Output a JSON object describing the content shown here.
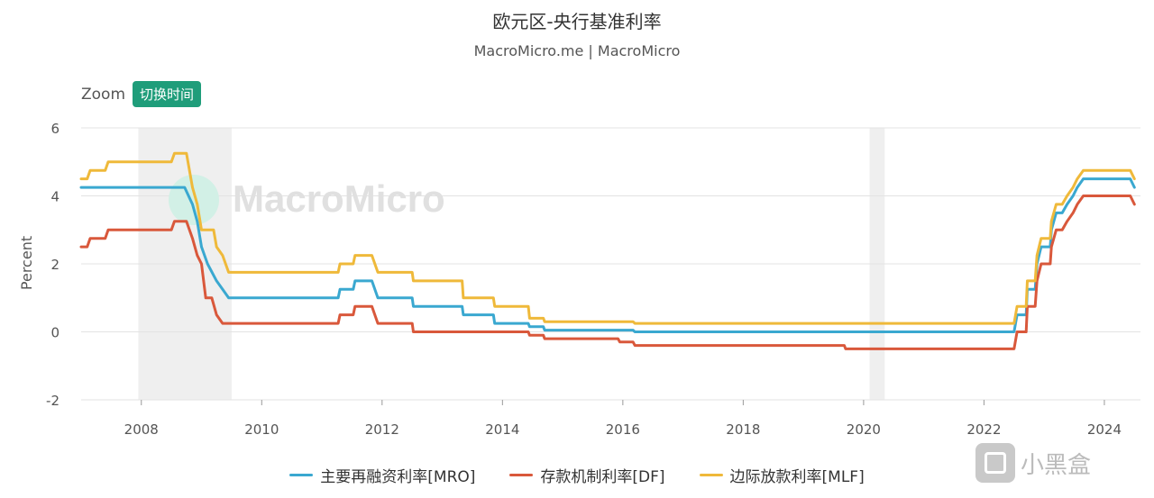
{
  "header": {
    "title": "欧元区-央行基准利率",
    "subtitle": "MacroMicro.me | MacroMicro"
  },
  "zoom": {
    "label": "Zoom",
    "button": "切换时间"
  },
  "watermark": {
    "text": "MacroMicro",
    "corner_text": "小黑盒"
  },
  "colors": {
    "mro": "#3aa8d0",
    "df": "#d9583b",
    "mlf": "#efb93a",
    "recession_band": "#efefef",
    "grid": "#e3e3e3"
  },
  "chart_data": {
    "type": "line",
    "title": "欧元区-央行基准利率",
    "ylabel": "Percent",
    "xlabel": "",
    "xlim": [
      2007.0,
      2024.6
    ],
    "ylim": [
      -2,
      6
    ],
    "xticks": [
      2008,
      2010,
      2012,
      2014,
      2016,
      2018,
      2020,
      2022,
      2024
    ],
    "yticks": [
      -2,
      0,
      2,
      4,
      6
    ],
    "grid": true,
    "legend_position": "bottom",
    "recession_bands": [
      [
        2007.95,
        2009.5
      ],
      [
        2020.1,
        2020.35
      ]
    ],
    "series": [
      {
        "name": "主要再融资利率[MRO]",
        "color_key": "mro",
        "points": [
          [
            2007.0,
            4.25
          ],
          [
            2008.72,
            4.25
          ],
          [
            2008.85,
            3.75
          ],
          [
            2008.93,
            3.25
          ],
          [
            2009.0,
            2.5
          ],
          [
            2009.1,
            2.0
          ],
          [
            2009.25,
            1.5
          ],
          [
            2009.35,
            1.25
          ],
          [
            2009.45,
            1.0
          ],
          [
            2011.27,
            1.0
          ],
          [
            2011.3,
            1.25
          ],
          [
            2011.52,
            1.25
          ],
          [
            2011.55,
            1.5
          ],
          [
            2011.83,
            1.5
          ],
          [
            2011.93,
            1.0
          ],
          [
            2012.5,
            1.0
          ],
          [
            2012.52,
            0.75
          ],
          [
            2013.33,
            0.75
          ],
          [
            2013.35,
            0.5
          ],
          [
            2013.85,
            0.5
          ],
          [
            2013.87,
            0.25
          ],
          [
            2014.43,
            0.25
          ],
          [
            2014.45,
            0.15
          ],
          [
            2014.68,
            0.15
          ],
          [
            2014.7,
            0.05
          ],
          [
            2016.17,
            0.05
          ],
          [
            2016.2,
            0.0
          ],
          [
            2022.5,
            0.0
          ],
          [
            2022.55,
            0.5
          ],
          [
            2022.7,
            0.5
          ],
          [
            2022.72,
            1.25
          ],
          [
            2022.85,
            1.25
          ],
          [
            2022.88,
            2.0
          ],
          [
            2022.95,
            2.5
          ],
          [
            2023.1,
            2.5
          ],
          [
            2023.12,
            3.0
          ],
          [
            2023.2,
            3.5
          ],
          [
            2023.3,
            3.5
          ],
          [
            2023.38,
            3.75
          ],
          [
            2023.48,
            4.0
          ],
          [
            2023.55,
            4.25
          ],
          [
            2023.65,
            4.5
          ],
          [
            2024.43,
            4.5
          ],
          [
            2024.5,
            4.25
          ]
        ]
      },
      {
        "name": "存款机制利率[DF]",
        "color_key": "df",
        "points": [
          [
            2007.0,
            2.5
          ],
          [
            2007.1,
            2.5
          ],
          [
            2007.15,
            2.75
          ],
          [
            2007.4,
            2.75
          ],
          [
            2007.45,
            3.0
          ],
          [
            2008.5,
            3.0
          ],
          [
            2008.55,
            3.25
          ],
          [
            2008.75,
            3.25
          ],
          [
            2008.85,
            2.75
          ],
          [
            2008.93,
            2.25
          ],
          [
            2009.0,
            2.0
          ],
          [
            2009.07,
            1.0
          ],
          [
            2009.17,
            1.0
          ],
          [
            2009.25,
            0.5
          ],
          [
            2009.35,
            0.25
          ],
          [
            2011.27,
            0.25
          ],
          [
            2011.3,
            0.5
          ],
          [
            2011.52,
            0.5
          ],
          [
            2011.55,
            0.75
          ],
          [
            2011.83,
            0.75
          ],
          [
            2011.93,
            0.25
          ],
          [
            2012.5,
            0.25
          ],
          [
            2012.52,
            0.0
          ],
          [
            2014.43,
            0.0
          ],
          [
            2014.45,
            -0.1
          ],
          [
            2014.68,
            -0.1
          ],
          [
            2014.7,
            -0.2
          ],
          [
            2015.92,
            -0.2
          ],
          [
            2015.95,
            -0.3
          ],
          [
            2016.17,
            -0.3
          ],
          [
            2016.2,
            -0.4
          ],
          [
            2019.68,
            -0.4
          ],
          [
            2019.7,
            -0.5
          ],
          [
            2022.5,
            -0.5
          ],
          [
            2022.55,
            0.0
          ],
          [
            2022.7,
            0.0
          ],
          [
            2022.72,
            0.75
          ],
          [
            2022.85,
            0.75
          ],
          [
            2022.88,
            1.5
          ],
          [
            2022.95,
            2.0
          ],
          [
            2023.1,
            2.0
          ],
          [
            2023.12,
            2.5
          ],
          [
            2023.2,
            3.0
          ],
          [
            2023.3,
            3.0
          ],
          [
            2023.38,
            3.25
          ],
          [
            2023.48,
            3.5
          ],
          [
            2023.55,
            3.75
          ],
          [
            2023.65,
            4.0
          ],
          [
            2024.43,
            4.0
          ],
          [
            2024.5,
            3.75
          ]
        ]
      },
      {
        "name": "边际放款利率[MLF]",
        "color_key": "mlf",
        "points": [
          [
            2007.0,
            4.5
          ],
          [
            2007.1,
            4.5
          ],
          [
            2007.15,
            4.75
          ],
          [
            2007.4,
            4.75
          ],
          [
            2007.45,
            5.0
          ],
          [
            2008.5,
            5.0
          ],
          [
            2008.55,
            5.25
          ],
          [
            2008.75,
            5.25
          ],
          [
            2008.85,
            4.25
          ],
          [
            2008.93,
            3.75
          ],
          [
            2009.0,
            3.0
          ],
          [
            2009.2,
            3.0
          ],
          [
            2009.25,
            2.5
          ],
          [
            2009.35,
            2.25
          ],
          [
            2009.45,
            1.75
          ],
          [
            2011.27,
            1.75
          ],
          [
            2011.3,
            2.0
          ],
          [
            2011.52,
            2.0
          ],
          [
            2011.55,
            2.25
          ],
          [
            2011.83,
            2.25
          ],
          [
            2011.93,
            1.75
          ],
          [
            2012.5,
            1.75
          ],
          [
            2012.52,
            1.5
          ],
          [
            2013.33,
            1.5
          ],
          [
            2013.35,
            1.0
          ],
          [
            2013.85,
            1.0
          ],
          [
            2013.87,
            0.75
          ],
          [
            2014.43,
            0.75
          ],
          [
            2014.45,
            0.4
          ],
          [
            2014.68,
            0.4
          ],
          [
            2014.7,
            0.3
          ],
          [
            2016.17,
            0.3
          ],
          [
            2016.2,
            0.25
          ],
          [
            2022.5,
            0.25
          ],
          [
            2022.55,
            0.75
          ],
          [
            2022.7,
            0.75
          ],
          [
            2022.72,
            1.5
          ],
          [
            2022.85,
            1.5
          ],
          [
            2022.88,
            2.25
          ],
          [
            2022.95,
            2.75
          ],
          [
            2023.1,
            2.75
          ],
          [
            2023.12,
            3.25
          ],
          [
            2023.2,
            3.75
          ],
          [
            2023.3,
            3.75
          ],
          [
            2023.38,
            4.0
          ],
          [
            2023.48,
            4.25
          ],
          [
            2023.55,
            4.5
          ],
          [
            2023.65,
            4.75
          ],
          [
            2024.43,
            4.75
          ],
          [
            2024.5,
            4.5
          ]
        ]
      }
    ]
  }
}
